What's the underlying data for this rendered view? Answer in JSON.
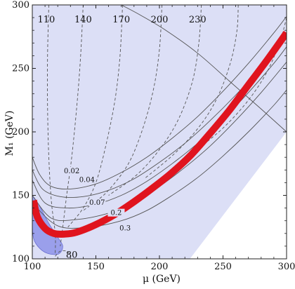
{
  "chart_data": {
    "type": "line",
    "title": "",
    "xlabel": "μ (GeV)",
    "ylabel": "M₁ (GeV)",
    "xlim": [
      100,
      300
    ],
    "ylim": [
      100,
      300
    ],
    "xticks": [
      100,
      150,
      200,
      250,
      300
    ],
    "yticks": [
      100,
      150,
      200,
      250,
      300
    ],
    "grid": false,
    "colors": {
      "allowed_region": "#dcdff6",
      "blob": "#8a8fe8",
      "band": "#e0141e",
      "solid_contour": "#555555",
      "dashed_contour": "#555555"
    },
    "allowed_region": [
      [
        100,
        300
      ],
      [
        300,
        300
      ],
      [
        300,
        200
      ],
      [
        224,
        100
      ],
      [
        100,
        100
      ]
    ],
    "relic_band": [
      [
        101,
        146
      ],
      [
        104,
        133
      ],
      [
        110,
        124
      ],
      [
        117,
        120
      ],
      [
        125,
        119.5
      ],
      [
        135,
        121
      ],
      [
        150,
        127
      ],
      [
        165,
        135
      ],
      [
        180,
        145
      ],
      [
        195,
        156
      ],
      [
        210,
        168
      ],
      [
        225,
        182
      ],
      [
        240,
        199
      ],
      [
        255,
        217
      ],
      [
        270,
        237
      ],
      [
        285,
        257
      ],
      [
        300,
        278
      ]
    ],
    "shaded_blob": [
      [
        100,
        150
      ],
      [
        105,
        143
      ],
      [
        113,
        128
      ],
      [
        120,
        117
      ],
      [
        124,
        110
      ],
      [
        121,
        104
      ],
      [
        113,
        104
      ],
      [
        106,
        108
      ],
      [
        101,
        116
      ],
      [
        100,
        130
      ]
    ],
    "solid_contours": [
      {
        "label": "0.02",
        "points": [
          [
            100,
            180
          ],
          [
            106,
            166
          ],
          [
            115,
            157
          ],
          [
            130,
            155
          ],
          [
            150,
            159
          ],
          [
            170,
            168
          ],
          [
            190,
            180
          ],
          [
            210,
            195
          ],
          [
            230,
            212
          ],
          [
            250,
            232
          ],
          [
            270,
            254
          ],
          [
            290,
            278
          ],
          [
            303,
            295
          ]
        ]
      },
      {
        "label": "0.04",
        "points": [
          [
            100,
            170
          ],
          [
            108,
            155
          ],
          [
            122,
            149
          ],
          [
            140,
            149
          ],
          [
            160,
            154
          ],
          [
            180,
            163
          ],
          [
            200,
            176
          ],
          [
            220,
            191
          ],
          [
            240,
            209
          ],
          [
            260,
            229
          ],
          [
            280,
            251
          ],
          [
            300,
            276
          ]
        ]
      },
      {
        "label": "0.07",
        "points": [
          [
            100,
            162
          ],
          [
            110,
            144
          ],
          [
            128,
            140
          ],
          [
            150,
            143
          ],
          [
            170,
            150
          ],
          [
            190,
            161
          ],
          [
            210,
            175
          ],
          [
            230,
            191
          ],
          [
            250,
            210
          ],
          [
            270,
            231
          ],
          [
            290,
            254
          ],
          [
            300,
            267
          ]
        ]
      },
      {
        "label": "0.2",
        "points": [
          [
            100,
            150
          ],
          [
            115,
            132
          ],
          [
            135,
            131
          ],
          [
            160,
            136
          ],
          [
            180,
            145
          ],
          [
            200,
            157
          ],
          [
            220,
            172
          ],
          [
            240,
            189
          ],
          [
            260,
            209
          ],
          [
            280,
            231
          ],
          [
            300,
            255
          ]
        ]
      },
      {
        "label": "0.3",
        "points": [
          [
            100,
            144
          ],
          [
            120,
            126
          ],
          [
            145,
            125
          ],
          [
            170,
            130
          ],
          [
            190,
            138
          ],
          [
            210,
            150
          ],
          [
            230,
            164
          ],
          [
            250,
            181
          ],
          [
            270,
            200
          ],
          [
            290,
            221
          ],
          [
            300,
            233
          ]
        ]
      },
      {
        "label": "",
        "points": [
          [
            170,
            300
          ],
          [
            185,
            292
          ],
          [
            205,
            280
          ],
          [
            230,
            262
          ],
          [
            255,
            240
          ],
          [
            280,
            218
          ],
          [
            300,
            200
          ]
        ]
      }
    ],
    "dashed_contours": [
      {
        "label": "110",
        "points": [
          [
            113,
            300
          ],
          [
            112,
            260
          ],
          [
            112,
            220
          ],
          [
            113,
            180
          ],
          [
            115,
            145
          ],
          [
            118,
            120
          ],
          [
            118,
            104
          ]
        ]
      },
      {
        "label": "140",
        "points": [
          [
            140,
            300
          ],
          [
            138,
            260
          ],
          [
            135,
            220
          ],
          [
            131,
            180
          ],
          [
            127,
            150
          ],
          [
            124,
            125
          ],
          [
            122,
            110
          ]
        ]
      },
      {
        "label": "170",
        "points": [
          [
            171,
            300
          ],
          [
            169,
            260
          ],
          [
            165,
            225
          ],
          [
            158,
            190
          ],
          [
            150,
            160
          ],
          [
            140,
            140
          ],
          [
            128,
            125
          ]
        ]
      },
      {
        "label": "200",
        "points": [
          [
            202,
            300
          ],
          [
            200,
            265
          ],
          [
            195,
            232
          ],
          [
            186,
            200
          ],
          [
            175,
            174
          ],
          [
            158,
            152
          ],
          [
            140,
            138
          ]
        ]
      },
      {
        "label": "230",
        "points": [
          [
            233,
            300
          ],
          [
            231,
            270
          ],
          [
            226,
            240
          ],
          [
            215,
            210
          ],
          [
            200,
            186
          ],
          [
            182,
            166
          ],
          [
            160,
            150
          ]
        ]
      },
      {
        "label": "",
        "points": [
          [
            262,
            300
          ],
          [
            261,
            280
          ],
          [
            256,
            255
          ],
          [
            246,
            228
          ],
          [
            232,
            205
          ],
          [
            212,
            183
          ],
          [
            188,
            163
          ]
        ]
      },
      {
        "label": "",
        "points": [
          [
            300,
            290
          ],
          [
            295,
            272
          ],
          [
            285,
            248
          ],
          [
            270,
            225
          ],
          [
            250,
            203
          ],
          [
            226,
            183
          ]
        ]
      },
      {
        "label": "80",
        "points": [
          [
            118,
            102
          ],
          [
            122,
            106
          ],
          [
            127,
            106
          ],
          [
            130,
            103
          ]
        ]
      }
    ],
    "dashed_labels": [
      "110",
      "140",
      "170",
      "200",
      "230"
    ],
    "solid_labels": [
      "0.02",
      "0.04",
      "0.07",
      "0.2",
      "0.3"
    ],
    "inner_label": "80"
  }
}
